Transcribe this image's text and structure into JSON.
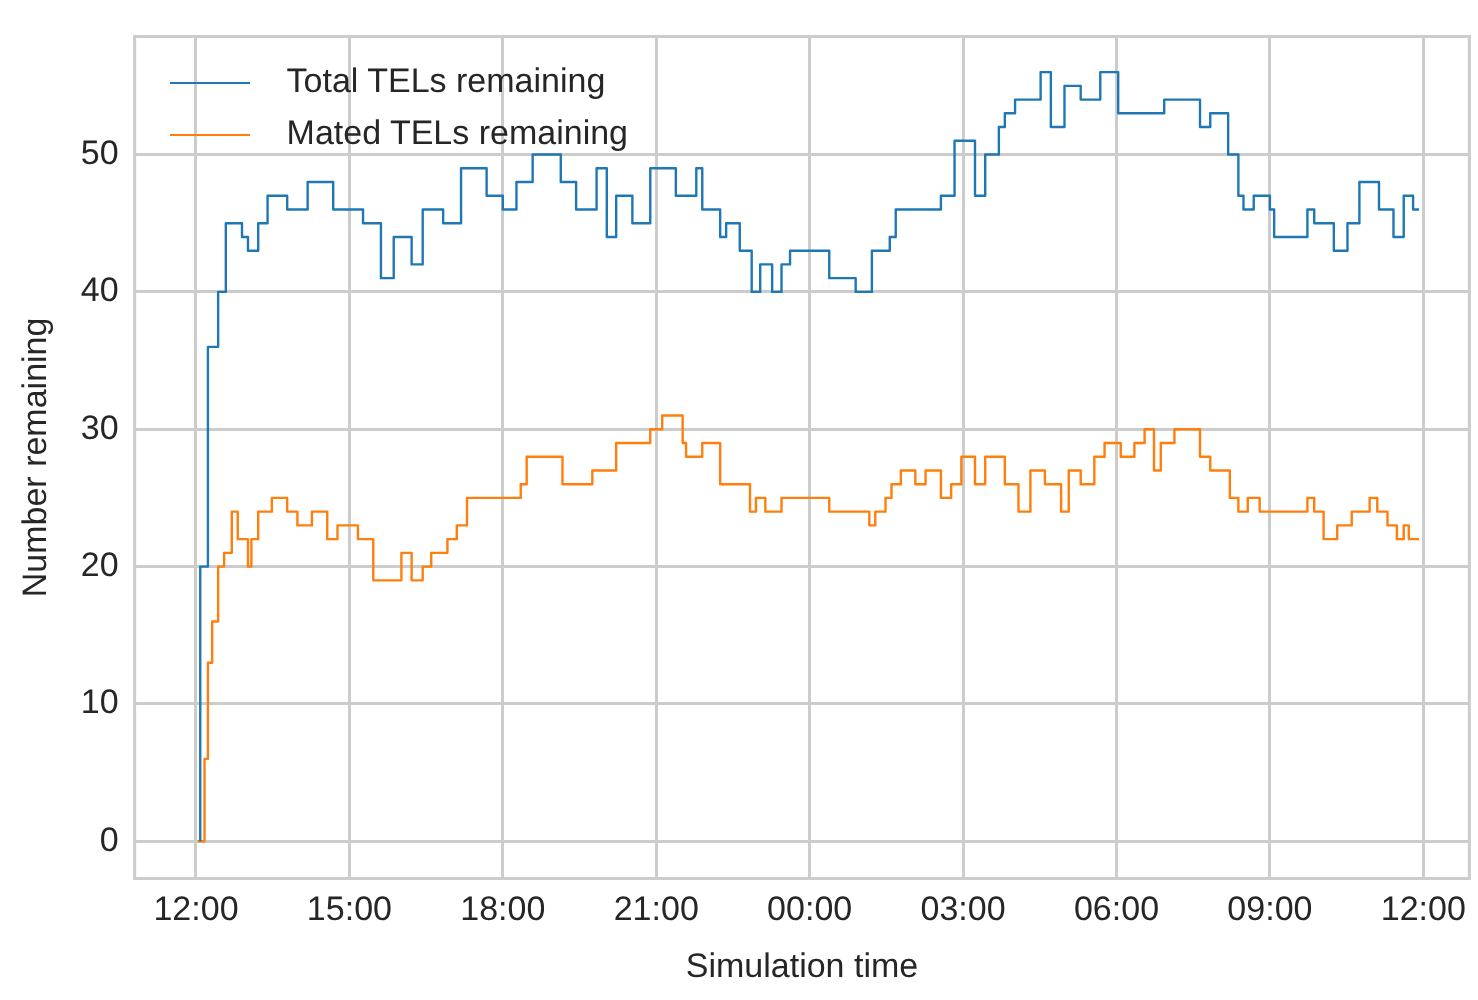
{
  "chart_data": {
    "type": "step",
    "xlabel": "Simulation time",
    "ylabel": "Number remaining",
    "xlim": [
      "2000-01-01T10:48",
      "2000-01-02T12:54"
    ],
    "ylim": [
      -2.7,
      58.6
    ],
    "xticks": [
      {
        "value": "2000-01-01T12:00",
        "label": "12:00"
      },
      {
        "value": "2000-01-01T15:00",
        "label": "15:00"
      },
      {
        "value": "2000-01-01T18:00",
        "label": "18:00"
      },
      {
        "value": "2000-01-01T21:00",
        "label": "21:00"
      },
      {
        "value": "2000-01-02T00:00",
        "label": "00:00"
      },
      {
        "value": "2000-01-02T03:00",
        "label": "03:00"
      },
      {
        "value": "2000-01-02T06:00",
        "label": "06:00"
      },
      {
        "value": "2000-01-02T09:00",
        "label": "09:00"
      },
      {
        "value": "2000-01-02T12:00",
        "label": "12:00"
      }
    ],
    "yticks": [
      0,
      10,
      20,
      30,
      40,
      50
    ],
    "grid": true,
    "legend": "top left",
    "series": [
      {
        "name": "Total TELs remaining",
        "color": "#1f77b4",
        "x": [
          "2000-01-01T12:05",
          "2000-01-01T12:14",
          "2000-01-01T12:26",
          "2000-01-01T12:35",
          "2000-01-01T12:54",
          "2000-01-01T13:01",
          "2000-01-01T13:13",
          "2000-01-01T13:24",
          "2000-01-01T13:47",
          "2000-01-01T14:11",
          "2000-01-01T14:41",
          "2000-01-01T14:58",
          "2000-01-01T15:16",
          "2000-01-01T15:37",
          "2000-01-01T15:52",
          "2000-01-01T16:13",
          "2000-01-01T16:26",
          "2000-01-01T16:50",
          "2000-01-01T17:11",
          "2000-01-01T17:41",
          "2000-01-01T18:00",
          "2000-01-01T18:16",
          "2000-01-01T18:35",
          "2000-01-01T19:08",
          "2000-01-01T19:26",
          "2000-01-01T19:50",
          "2000-01-01T20:02",
          "2000-01-01T20:13",
          "2000-01-01T20:32",
          "2000-01-01T20:53",
          "2000-01-01T21:23",
          "2000-01-01T21:47",
          "2000-01-01T21:54",
          "2000-01-01T22:15",
          "2000-01-01T22:22",
          "2000-01-01T22:38",
          "2000-01-01T22:52",
          "2000-01-01T23:02",
          "2000-01-01T23:16",
          "2000-01-01T23:27",
          "2000-01-01T23:37",
          "2000-01-01T23:44",
          "2000-01-02T00:23",
          "2000-01-02T00:54",
          "2000-01-02T01:13",
          "2000-01-02T01:34",
          "2000-01-02T01:41",
          "2000-01-02T02:08",
          "2000-01-02T02:34",
          "2000-01-02T02:50",
          "2000-01-02T03:14",
          "2000-01-02T03:26",
          "2000-01-02T03:42",
          "2000-01-02T03:49",
          "2000-01-02T04:01",
          "2000-01-02T04:13",
          "2000-01-02T04:31",
          "2000-01-02T04:43",
          "2000-01-02T04:59",
          "2000-01-02T05:18",
          "2000-01-02T05:41",
          "2000-01-02T06:02",
          "2000-01-02T06:21",
          "2000-01-02T06:56",
          "2000-01-02T07:38",
          "2000-01-02T07:50",
          "2000-01-02T08:11",
          "2000-01-02T08:23",
          "2000-01-02T08:29",
          "2000-01-02T08:41",
          "2000-01-02T09:00",
          "2000-01-02T09:05",
          "2000-01-02T09:21",
          "2000-01-02T09:44",
          "2000-01-02T09:52",
          "2000-01-02T10:15",
          "2000-01-02T10:31",
          "2000-01-02T10:45",
          "2000-01-02T11:08",
          "2000-01-02T11:25",
          "2000-01-02T11:37",
          "2000-01-02T11:48",
          "2000-01-02T11:55"
        ],
        "values": [
          0,
          20,
          36,
          40,
          45,
          44,
          43,
          45,
          47,
          46,
          48,
          46,
          46,
          45,
          41,
          44,
          42,
          46,
          45,
          49,
          47,
          46,
          48,
          50,
          48,
          46,
          49,
          44,
          47,
          45,
          49,
          47,
          49,
          46,
          44,
          45,
          43,
          40,
          42,
          40,
          42,
          43,
          43,
          41,
          40,
          43,
          44,
          46,
          46,
          47,
          51,
          47,
          50,
          52,
          53,
          54,
          54,
          56,
          52,
          55,
          54,
          56,
          53,
          53,
          54,
          52,
          53,
          50,
          47,
          46,
          47,
          46,
          44,
          44,
          46,
          45,
          43,
          45,
          48,
          46,
          44,
          47,
          46
        ]
      },
      {
        "name": "Mated TELs remaining",
        "color": "#ff7f0e",
        "x": [
          "2000-01-01T12:02",
          "2000-01-01T12:10",
          "2000-01-01T12:14",
          "2000-01-01T12:19",
          "2000-01-01T12:26",
          "2000-01-01T12:33",
          "2000-01-01T12:42",
          "2000-01-01T12:49",
          "2000-01-01T13:01",
          "2000-01-01T13:05",
          "2000-01-01T13:13",
          "2000-01-01T13:29",
          "2000-01-01T13:47",
          "2000-01-01T13:59",
          "2000-01-01T14:16",
          "2000-01-01T14:34",
          "2000-01-01T14:46",
          "2000-01-01T15:10",
          "2000-01-01T15:28",
          "2000-01-01T15:40",
          "2000-01-01T16:01",
          "2000-01-01T16:13",
          "2000-01-01T16:26",
          "2000-01-01T16:36",
          "2000-01-01T16:55",
          "2000-01-01T17:06",
          "2000-01-01T17:18",
          "2000-01-01T17:34",
          "2000-01-01T18:21",
          "2000-01-01T18:28",
          "2000-01-01T18:44",
          "2000-01-01T19:10",
          "2000-01-01T19:19",
          "2000-01-01T19:45",
          "2000-01-01T20:13",
          "2000-01-01T20:25",
          "2000-01-01T20:53",
          "2000-01-01T21:07",
          "2000-01-01T21:16",
          "2000-01-01T21:31",
          "2000-01-01T21:35",
          "2000-01-01T21:54",
          "2000-01-01T22:15",
          "2000-01-01T22:17",
          "2000-01-01T22:50",
          "2000-01-01T22:57",
          "2000-01-01T23:08",
          "2000-01-01T23:27",
          "2000-01-01T23:50",
          "2000-01-02T00:23",
          "2000-01-02T00:31",
          "2000-01-02T01:10",
          "2000-01-02T01:17",
          "2000-01-02T01:29",
          "2000-01-02T01:36",
          "2000-01-02T01:47",
          "2000-01-02T02:04",
          "2000-01-02T02:16",
          "2000-01-02T02:34",
          "2000-01-02T02:46",
          "2000-01-02T02:58",
          "2000-01-02T03:14",
          "2000-01-02T03:26",
          "2000-01-02T03:49",
          "2000-01-02T04:05",
          "2000-01-02T04:19",
          "2000-01-02T04:36",
          "2000-01-02T04:55",
          "2000-01-02T05:04",
          "2000-01-02T05:18",
          "2000-01-02T05:34",
          "2000-01-02T05:46",
          "2000-01-02T06:05",
          "2000-01-02T06:21",
          "2000-01-02T06:33",
          "2000-01-02T06:44",
          "2000-01-02T06:52",
          "2000-01-02T07:08",
          "2000-01-02T07:38",
          "2000-01-02T07:50",
          "2000-01-02T08:13",
          "2000-01-02T08:23",
          "2000-01-02T08:34",
          "2000-01-02T08:48",
          "2000-01-02T09:00",
          "2000-01-02T09:44",
          "2000-01-02T09:52",
          "2000-01-02T10:03",
          "2000-01-02T10:19",
          "2000-01-02T10:36",
          "2000-01-02T10:57",
          "2000-01-02T11:06",
          "2000-01-02T11:18",
          "2000-01-02T11:29",
          "2000-01-02T11:37",
          "2000-01-02T11:43",
          "2000-01-02T11:55"
        ],
        "values": [
          0,
          0,
          6,
          13,
          16,
          20,
          21,
          24,
          22,
          20,
          22,
          24,
          25,
          24,
          23,
          24,
          22,
          23,
          22,
          19,
          19,
          21,
          19,
          20,
          21,
          22,
          23,
          25,
          25,
          26,
          28,
          28,
          26,
          26,
          27,
          29,
          29,
          30,
          31,
          31,
          29,
          28,
          29,
          26,
          26,
          24,
          25,
          24,
          25,
          25,
          24,
          24,
          23,
          24,
          25,
          26,
          27,
          26,
          27,
          25,
          26,
          28,
          26,
          28,
          26,
          24,
          27,
          26,
          24,
          27,
          26,
          28,
          29,
          28,
          29,
          30,
          27,
          29,
          30,
          28,
          27,
          25,
          24,
          25,
          24,
          24,
          25,
          24,
          22,
          23,
          24,
          25,
          24,
          23,
          22,
          23,
          22
        ]
      }
    ]
  }
}
